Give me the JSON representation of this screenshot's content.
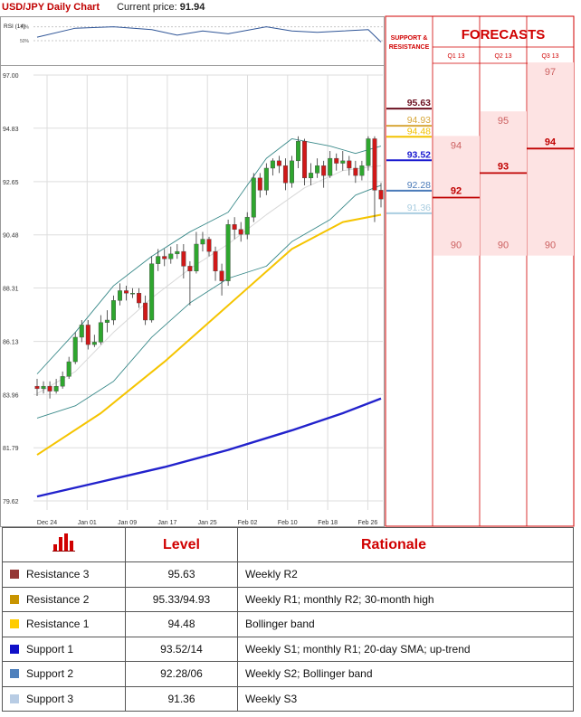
{
  "header": {
    "title": "USD/JPY Daily Chart",
    "price_label": "Current price:",
    "price_value": "91.94"
  },
  "forecast_panel": {
    "sr_title_line1": "SUPPORT &",
    "sr_title_line2": "RESISTANCE",
    "forecasts_title": "FORECASTS",
    "quarters": [
      "Q1 13",
      "Q2 13",
      "Q3 13"
    ],
    "levels": [
      {
        "label": "95.63",
        "value": 95.63,
        "color": "#6b1020"
      },
      {
        "label": "94.93",
        "value": 94.93,
        "color": "#d8a73a"
      },
      {
        "label": "94.48",
        "value": 94.48,
        "color": "#f2c200"
      },
      {
        "label": "93.52",
        "value": 93.52,
        "color": "#1a1ad0"
      },
      {
        "label": "92.28",
        "value": 92.28,
        "color": "#4a7ab8"
      },
      {
        "label": "91.36",
        "value": 91.36,
        "color": "#a9cde0"
      }
    ],
    "forecasts": [
      {
        "quarter": "Q1 13",
        "high": "94",
        "central": "92",
        "low": "90",
        "central_value": 92
      },
      {
        "quarter": "Q2 13",
        "high": "95",
        "central": "93",
        "low": "90",
        "central_value": 93
      },
      {
        "quarter": "Q3 13",
        "high": "97",
        "central": "94",
        "low": "90",
        "central_value": 94
      }
    ]
  },
  "chart_data": {
    "type": "candlestick",
    "title": "USD/JPY Daily Chart",
    "rsi_label": "RSI (14)",
    "rsi_ticks": [
      "70%",
      "50%"
    ],
    "y_ticks": [
      97.0,
      94.83,
      92.65,
      90.48,
      88.31,
      86.13,
      83.96,
      81.79,
      79.62
    ],
    "y_tick_labels": [
      "97.00",
      "94.83",
      "92.65",
      "90.48",
      "88.31",
      "86.13",
      "83.96",
      "81.79",
      "79.62"
    ],
    "ylim": [
      79.62,
      97.0
    ],
    "x_tick_labels": [
      "Dec 24",
      "Jan 01",
      "Jan 09",
      "Jan 17",
      "Jan 25",
      "Feb 02",
      "Feb 10",
      "Feb 18",
      "Feb 26"
    ],
    "candles": [
      {
        "o": 84.3,
        "c": 84.2,
        "h": 84.6,
        "l": 83.9
      },
      {
        "o": 84.2,
        "c": 84.3,
        "h": 84.5,
        "l": 84.0
      },
      {
        "o": 84.3,
        "c": 84.1,
        "h": 84.5,
        "l": 83.8
      },
      {
        "o": 84.1,
        "c": 84.3,
        "h": 84.6,
        "l": 84.0
      },
      {
        "o": 84.3,
        "c": 84.7,
        "h": 84.9,
        "l": 84.2
      },
      {
        "o": 84.7,
        "c": 85.3,
        "h": 85.5,
        "l": 84.6
      },
      {
        "o": 85.3,
        "c": 86.3,
        "h": 86.5,
        "l": 85.2
      },
      {
        "o": 86.3,
        "c": 86.8,
        "h": 87.0,
        "l": 86.1
      },
      {
        "o": 86.8,
        "c": 86.0,
        "h": 87.0,
        "l": 85.8
      },
      {
        "o": 86.0,
        "c": 86.1,
        "h": 86.4,
        "l": 85.9
      },
      {
        "o": 86.1,
        "c": 86.9,
        "h": 87.2,
        "l": 86.0
      },
      {
        "o": 86.9,
        "c": 87.0,
        "h": 87.4,
        "l": 86.5
      },
      {
        "o": 87.0,
        "c": 87.8,
        "h": 88.0,
        "l": 86.8
      },
      {
        "o": 87.8,
        "c": 88.2,
        "h": 88.5,
        "l": 87.6
      },
      {
        "o": 88.2,
        "c": 88.1,
        "h": 88.4,
        "l": 87.8
      },
      {
        "o": 88.1,
        "c": 88.1,
        "h": 88.3,
        "l": 87.9
      },
      {
        "o": 88.1,
        "c": 87.7,
        "h": 88.3,
        "l": 87.5
      },
      {
        "o": 87.7,
        "c": 87.0,
        "h": 88.0,
        "l": 86.8
      },
      {
        "o": 87.0,
        "c": 89.3,
        "h": 89.6,
        "l": 86.9
      },
      {
        "o": 89.3,
        "c": 89.6,
        "h": 89.9,
        "l": 89.0
      },
      {
        "o": 89.6,
        "c": 89.5,
        "h": 89.9,
        "l": 89.2
      },
      {
        "o": 89.5,
        "c": 89.7,
        "h": 90.0,
        "l": 89.3
      },
      {
        "o": 89.7,
        "c": 89.8,
        "h": 90.1,
        "l": 89.5
      },
      {
        "o": 89.8,
        "c": 89.2,
        "h": 90.1,
        "l": 88.7
      },
      {
        "o": 89.2,
        "c": 89.0,
        "h": 89.4,
        "l": 87.6
      },
      {
        "o": 89.0,
        "c": 90.1,
        "h": 90.6,
        "l": 88.9
      },
      {
        "o": 90.1,
        "c": 90.3,
        "h": 90.6,
        "l": 89.8
      },
      {
        "o": 90.3,
        "c": 89.8,
        "h": 90.4,
        "l": 89.6
      },
      {
        "o": 89.8,
        "c": 89.0,
        "h": 90.0,
        "l": 88.6
      },
      {
        "o": 89.0,
        "c": 88.6,
        "h": 89.3,
        "l": 88.0
      },
      {
        "o": 88.6,
        "c": 90.9,
        "h": 91.1,
        "l": 88.4
      },
      {
        "o": 90.9,
        "c": 90.7,
        "h": 91.2,
        "l": 90.3
      },
      {
        "o": 90.7,
        "c": 90.5,
        "h": 91.0,
        "l": 90.2
      },
      {
        "o": 90.5,
        "c": 91.2,
        "h": 91.4,
        "l": 90.3
      },
      {
        "o": 91.2,
        "c": 92.8,
        "h": 93.0,
        "l": 91.0
      },
      {
        "o": 92.8,
        "c": 92.3,
        "h": 93.0,
        "l": 92.0
      },
      {
        "o": 92.3,
        "c": 93.2,
        "h": 93.4,
        "l": 92.1
      },
      {
        "o": 93.2,
        "c": 93.5,
        "h": 93.6,
        "l": 92.9
      },
      {
        "o": 93.5,
        "c": 93.3,
        "h": 93.7,
        "l": 93.0
      },
      {
        "o": 93.3,
        "c": 92.6,
        "h": 93.6,
        "l": 92.3
      },
      {
        "o": 92.6,
        "c": 93.5,
        "h": 93.7,
        "l": 92.4
      },
      {
        "o": 93.5,
        "c": 94.3,
        "h": 94.5,
        "l": 93.2
      },
      {
        "o": 94.3,
        "c": 92.8,
        "h": 94.4,
        "l": 92.5
      },
      {
        "o": 92.8,
        "c": 93.0,
        "h": 93.4,
        "l": 92.5
      },
      {
        "o": 93.0,
        "c": 93.3,
        "h": 93.6,
        "l": 92.8
      },
      {
        "o": 93.3,
        "c": 92.9,
        "h": 93.5,
        "l": 92.4
      },
      {
        "o": 92.9,
        "c": 93.6,
        "h": 93.9,
        "l": 92.8
      },
      {
        "o": 93.6,
        "c": 93.4,
        "h": 93.8,
        "l": 93.1
      },
      {
        "o": 93.4,
        "c": 93.5,
        "h": 93.9,
        "l": 93.1
      },
      {
        "o": 93.5,
        "c": 93.2,
        "h": 93.7,
        "l": 92.9
      },
      {
        "o": 93.2,
        "c": 92.9,
        "h": 93.5,
        "l": 92.6
      },
      {
        "o": 92.9,
        "c": 93.3,
        "h": 93.5,
        "l": 92.7
      },
      {
        "o": 93.3,
        "c": 94.4,
        "h": 94.5,
        "l": 93.1
      },
      {
        "o": 94.4,
        "c": 92.3,
        "h": 94.5,
        "l": 91.0
      },
      {
        "o": 92.3,
        "c": 91.94,
        "h": 92.6,
        "l": 91.6
      }
    ],
    "bollinger_upper": [
      [
        0,
        84.8
      ],
      [
        6,
        86.5
      ],
      [
        12,
        88.4
      ],
      [
        18,
        89.6
      ],
      [
        24,
        90.6
      ],
      [
        30,
        91.4
      ],
      [
        36,
        93.6
      ],
      [
        40,
        94.4
      ],
      [
        46,
        94.1
      ],
      [
        50,
        93.8
      ],
      [
        54,
        94.1
      ]
    ],
    "bollinger_mid": [
      [
        0,
        84.0
      ],
      [
        6,
        84.9
      ],
      [
        12,
        86.5
      ],
      [
        18,
        87.9
      ],
      [
        24,
        89.1
      ],
      [
        30,
        90.1
      ],
      [
        36,
        91.3
      ],
      [
        42,
        92.4
      ],
      [
        48,
        93.1
      ],
      [
        54,
        93.3
      ]
    ],
    "bollinger_lower": [
      [
        0,
        83.0
      ],
      [
        6,
        83.5
      ],
      [
        12,
        84.5
      ],
      [
        18,
        86.3
      ],
      [
        24,
        87.7
      ],
      [
        30,
        88.7
      ],
      [
        36,
        89.2
      ],
      [
        40,
        90.2
      ],
      [
        46,
        91.1
      ],
      [
        50,
        92.1
      ],
      [
        54,
        92.5
      ]
    ],
    "sma_30": [
      [
        0,
        81.5
      ],
      [
        10,
        83.2
      ],
      [
        20,
        85.3
      ],
      [
        30,
        87.6
      ],
      [
        40,
        89.9
      ],
      [
        48,
        91.0
      ],
      [
        54,
        91.3
      ]
    ],
    "sma_200": [
      [
        0,
        79.8
      ],
      [
        10,
        80.4
      ],
      [
        20,
        81.0
      ],
      [
        30,
        81.7
      ],
      [
        40,
        82.5
      ],
      [
        48,
        83.2
      ],
      [
        54,
        83.8
      ]
    ],
    "rsi": [
      [
        0,
        55
      ],
      [
        6,
        68
      ],
      [
        12,
        70
      ],
      [
        18,
        66
      ],
      [
        22,
        58
      ],
      [
        26,
        64
      ],
      [
        30,
        60
      ],
      [
        36,
        70
      ],
      [
        40,
        64
      ],
      [
        44,
        62
      ],
      [
        48,
        64
      ],
      [
        52,
        66
      ],
      [
        54,
        48
      ]
    ]
  },
  "table": {
    "headers": [
      "",
      "Level",
      "Rationale"
    ],
    "rows": [
      {
        "label": "Resistance 3",
        "level": "95.63",
        "rationale": "Weekly R2",
        "color": "#953735"
      },
      {
        "label": "Resistance 2",
        "level": "95.33/94.93",
        "rationale": "Weekly R1; monthly R2; 30-month high",
        "color": "#c89400"
      },
      {
        "label": "Resistance 1",
        "level": "94.48",
        "rationale": "Bollinger band",
        "color": "#ffcc00"
      },
      {
        "label": "Support 1",
        "level": "93.52/14",
        "rationale": "Weekly S1; monthly R1; 20-day SMA; up-trend",
        "color": "#1010c8"
      },
      {
        "label": "Support 2",
        "level": "92.28/06",
        "rationale": "Weekly S2; Bollinger band",
        "color": "#4f81bd"
      },
      {
        "label": "Support 3",
        "level": "91.36",
        "rationale": "Weekly S3",
        "color": "#b8cce4"
      }
    ]
  },
  "colors": {
    "accent": "#d00000",
    "bull": "#2ea62e",
    "bear": "#d01818"
  }
}
